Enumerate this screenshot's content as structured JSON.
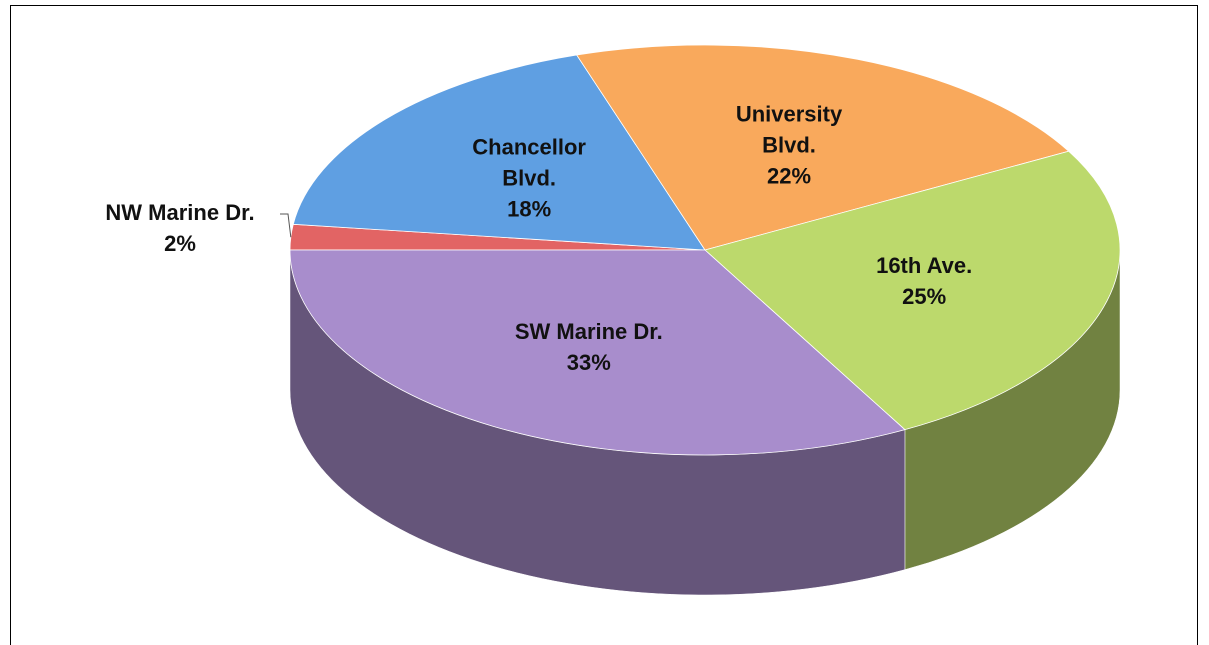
{
  "chart_data": {
    "type": "pie3d",
    "categories": [
      "NW Marine Dr.",
      "Chancellor Blvd.",
      "University Blvd.",
      "16th Ave.",
      "SW Marine Dr."
    ],
    "values": [
      2,
      18,
      22,
      25,
      33
    ],
    "value_labels": [
      "2%",
      "18%",
      "22%",
      "25%",
      "33%"
    ],
    "colors": [
      "#e26464",
      "#5f9fe2",
      "#f9a95c",
      "#bcd96c",
      "#a88dcc"
    ]
  }
}
